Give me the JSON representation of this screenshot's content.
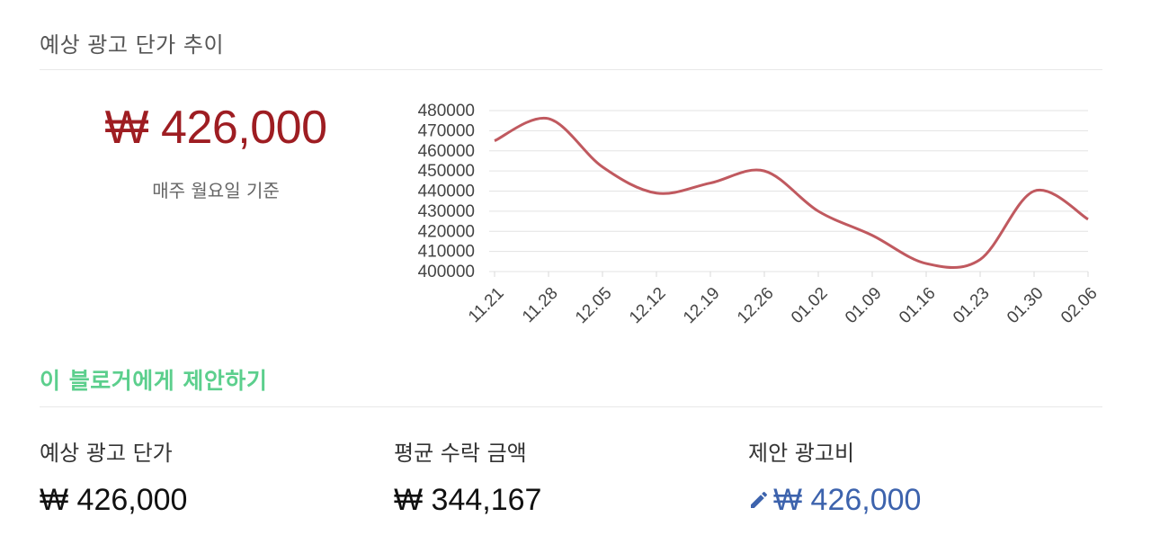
{
  "section_title": "예상 광고 단가 추이",
  "current": {
    "price": "₩ 426,000",
    "caption": "매주 월요일 기준"
  },
  "chart_data": {
    "type": "line",
    "categories": [
      "11.21",
      "11.28",
      "12.05",
      "12.12",
      "12.19",
      "12.26",
      "01.02",
      "01.09",
      "01.16",
      "01.23",
      "01.30",
      "02.06"
    ],
    "series": [
      {
        "values": [
          465000,
          476000,
          452000,
          439000,
          444000,
          450000,
          430000,
          418000,
          404000,
          406000,
          440000,
          426000
        ]
      }
    ],
    "ylim": [
      400000,
      480000
    ],
    "yticks": [
      "480000",
      "470000",
      "460000",
      "450000",
      "440000",
      "430000",
      "420000",
      "410000",
      "400000"
    ],
    "grid": true,
    "color": "#c0595f"
  },
  "proposal_link": "이 블로거에게 제안하기",
  "stats": {
    "expected": {
      "label": "예상 광고 단가",
      "value": "₩ 426,000"
    },
    "average": {
      "label": "평균 수락 금액",
      "value": "₩ 344,167"
    },
    "proposed": {
      "label": "제안 광고비",
      "value": "₩ 426,000",
      "icon": "pencil-icon"
    }
  },
  "colors": {
    "accent_price": "#9e1d22",
    "link_green": "#5ccf8d",
    "edit_blue": "#3d63ad"
  }
}
